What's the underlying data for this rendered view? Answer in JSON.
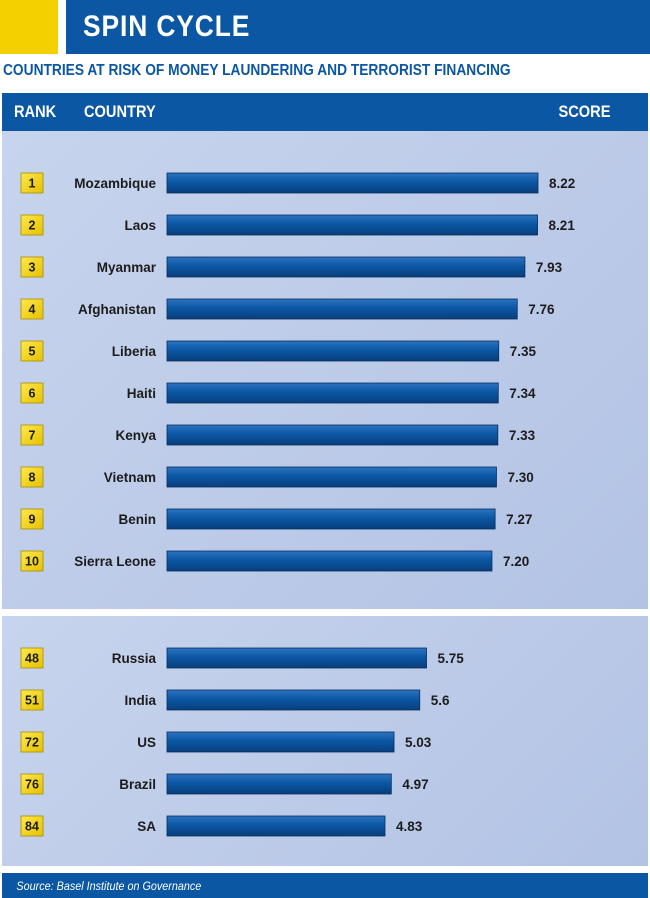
{
  "title": "SPIN CYCLE",
  "subtitle": "COUNTRIES AT RISK OF MONEY LAUNDERING AND TERRORIST FINANCING",
  "headers": {
    "rank": "RANK",
    "country": "COUNTRY",
    "score": "SCORE"
  },
  "source": "Source: Basel Institute on Governance",
  "colors": {
    "brand_blue": "#0b57a4",
    "accent_yellow": "#f5d000",
    "panel": "#bfcdea"
  },
  "chart_data": {
    "type": "bar",
    "orientation": "horizontal",
    "grid": false,
    "groups": [
      {
        "rows": [
          {
            "rank": "1",
            "country": "Mozambique",
            "value": 8.22,
            "label": "8.22"
          },
          {
            "rank": "2",
            "country": "Laos",
            "value": 8.21,
            "label": "8.21"
          },
          {
            "rank": "3",
            "country": "Myanmar",
            "value": 7.93,
            "label": "7.93"
          },
          {
            "rank": "4",
            "country": "Afghanistan",
            "value": 7.76,
            "label": "7.76"
          },
          {
            "rank": "5",
            "country": "Liberia",
            "value": 7.35,
            "label": "7.35"
          },
          {
            "rank": "6",
            "country": "Haiti",
            "value": 7.34,
            "label": "7.34"
          },
          {
            "rank": "7",
            "country": "Kenya",
            "value": 7.33,
            "label": "7.33"
          },
          {
            "rank": "8",
            "country": "Vietnam",
            "value": 7.3,
            "label": "7.30"
          },
          {
            "rank": "9",
            "country": "Benin",
            "value": 7.27,
            "label": "7.27"
          },
          {
            "rank": "10",
            "country": "Sierra Leone",
            "value": 7.2,
            "label": "7.20"
          }
        ]
      },
      {
        "rows": [
          {
            "rank": "48",
            "country": "Russia",
            "value": 5.75,
            "label": "5.75"
          },
          {
            "rank": "51",
            "country": "India",
            "value": 5.6,
            "label": "5.6"
          },
          {
            "rank": "72",
            "country": "US",
            "value": 5.03,
            "label": "5.03"
          },
          {
            "rank": "76",
            "country": "Brazil",
            "value": 4.97,
            "label": "4.97"
          },
          {
            "rank": "84",
            "country": "SA",
            "value": 4.83,
            "label": "4.83"
          }
        ]
      }
    ]
  }
}
